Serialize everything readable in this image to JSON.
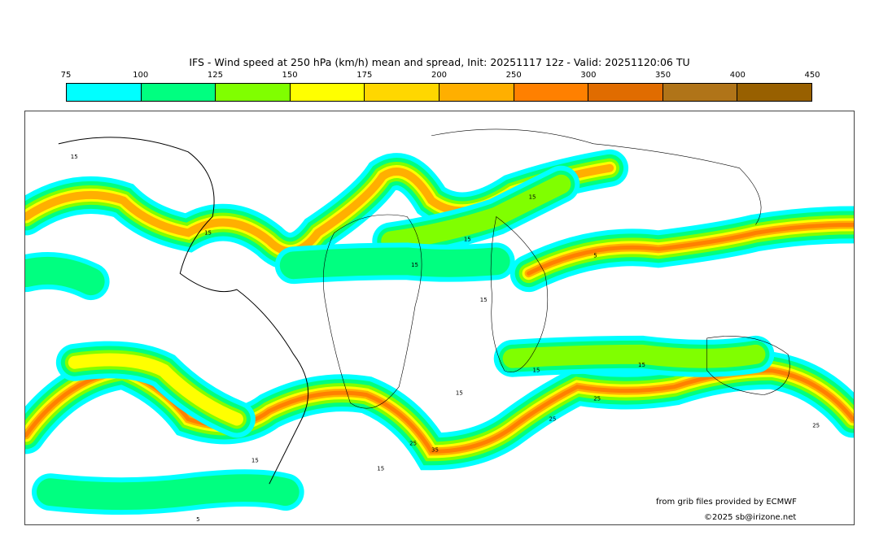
{
  "title": "IFS - Wind speed at 250 hPa (km/h) mean and spread, Init: 20251117 12z - Valid: 20251120:06 TU",
  "colorbar": {
    "ticks": [
      "75",
      "100",
      "125",
      "150",
      "175",
      "200",
      "250",
      "300",
      "350",
      "400",
      "450"
    ],
    "colors": [
      "#00ffff",
      "#00ff80",
      "#80ff00",
      "#ffff00",
      "#ffd700",
      "#ffaf00",
      "#ff8000",
      "#e06c00",
      "#b07418",
      "#986000"
    ]
  },
  "map": {
    "contour_labels": [
      "15",
      "15",
      "15",
      "15",
      "15",
      "15",
      "15",
      "15",
      "15",
      "15",
      "15",
      "25",
      "25",
      "25",
      "25",
      "35",
      "5",
      "5"
    ]
  },
  "credits": {
    "source": "from grib files provided by ECMWF",
    "copyright": "©2025 sb@irizone.net"
  }
}
